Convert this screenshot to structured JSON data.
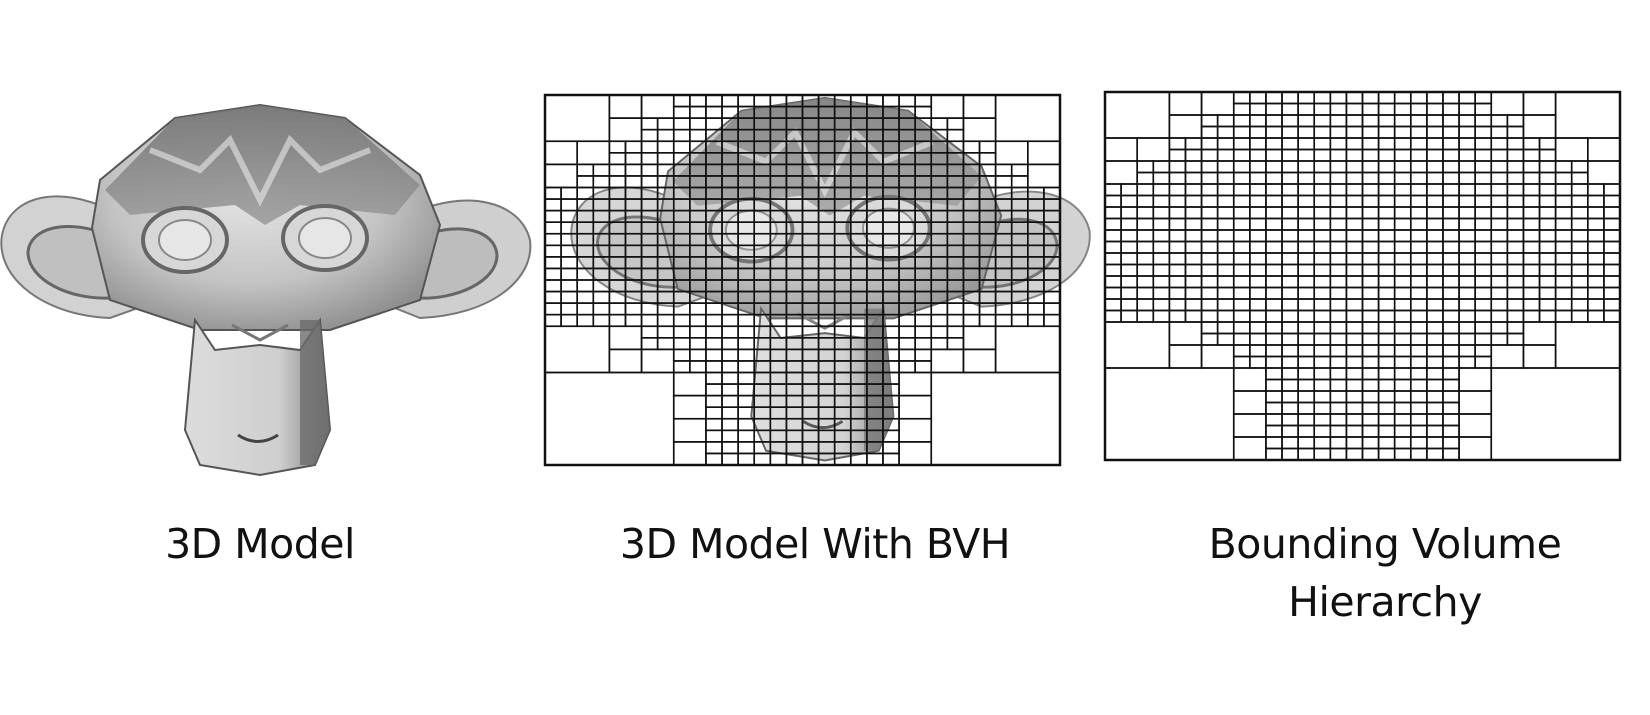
{
  "captions": {
    "model": "3D Model",
    "model_bvh": "3D Model With BVH",
    "bvh": "Bounding Volume Hierarchy"
  },
  "colors": {
    "grid_line": "#111111",
    "background": "#ffffff",
    "mesh_light": "#d9d9d9",
    "mesh_mid": "#a8a8a8",
    "mesh_dark": "#5f5f5f"
  }
}
